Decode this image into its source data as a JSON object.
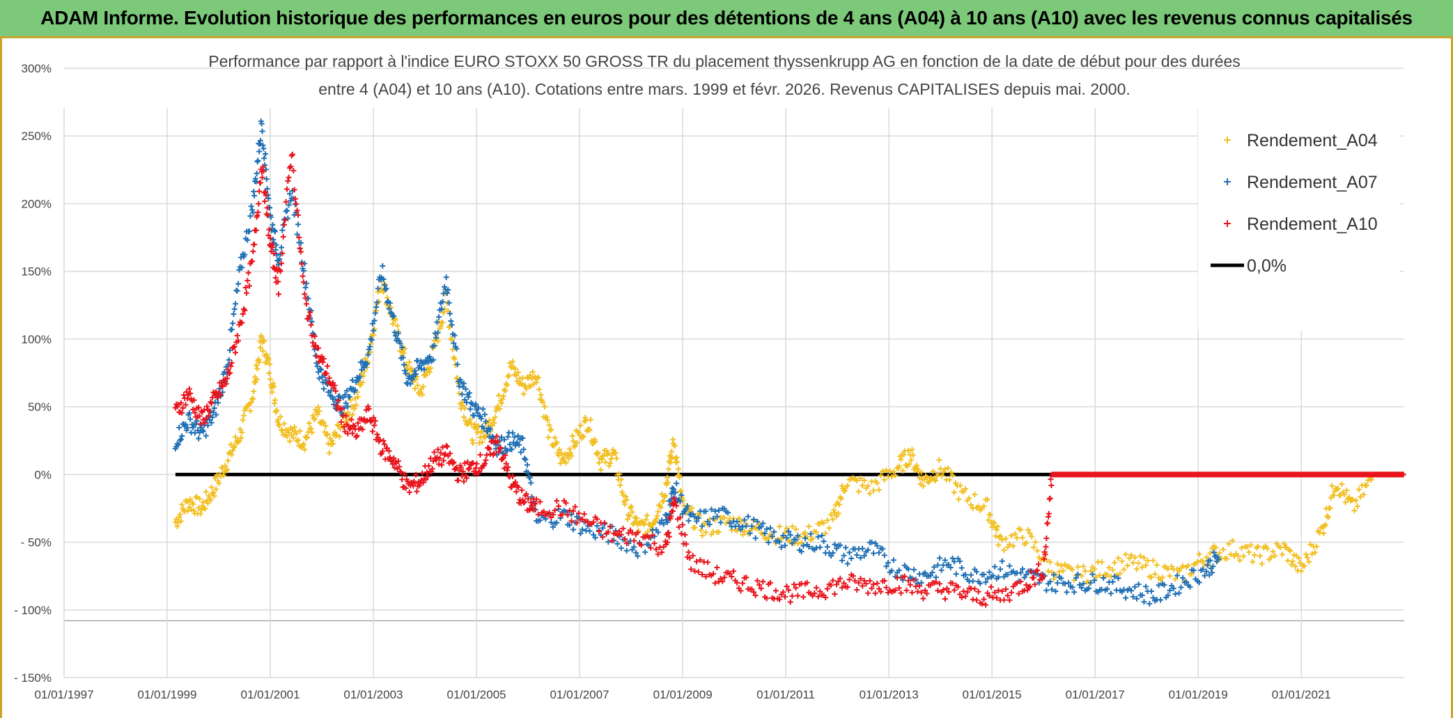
{
  "banner": {
    "title": "ADAM Informe. Evolution historique des performances en euros pour des détentions de 4 ans (A04) à 10 ans (A10) avec les revenus connus capitalisés"
  },
  "colors": {
    "banner_bg": "#7dc97a",
    "a04": "#f2bf22",
    "a07": "#1f6fb4",
    "a10": "#e8141c",
    "zero": "#000000"
  },
  "chart_data": {
    "type": "scatter",
    "title_line1": "Performance par rapport à l'indice EURO STOXX 50 GROSS TR  du placement thyssenkrupp AG en fonction de la date de début pour des durées",
    "title_line2": "entre 4 (A04) et 10 ans (A10). Cotations entre mars. 1999 et févr. 2026. Revenus CAPITALISES depuis mai. 2000.",
    "xlabel": "",
    "ylabel": "",
    "x_range": [
      "1997-01-01",
      "2022-12-31"
    ],
    "y_range": [
      -150,
      300
    ],
    "x_ticks": [
      "01/01/1997",
      "01/01/1999",
      "01/01/2001",
      "01/01/2003",
      "01/01/2005",
      "01/01/2007",
      "01/01/2009",
      "01/01/2011",
      "01/01/2013",
      "01/01/2015",
      "01/01/2017",
      "01/01/2019",
      "01/01/2021"
    ],
    "y_ticks": [
      "300%",
      "250%",
      "200%",
      "150%",
      "100%",
      "50%",
      "0%",
      "- 50%",
      "- 100%",
      "- 150%"
    ],
    "grid": true,
    "legend_position": "top-right",
    "series": [
      {
        "name": "Rendement_A04",
        "marker": "+",
        "points": [
          [
            "1999-03-01",
            -35
          ],
          [
            "1999-06-01",
            -20
          ],
          [
            "1999-09-01",
            -25
          ],
          [
            "1999-12-01",
            -10
          ],
          [
            "2000-03-01",
            10
          ],
          [
            "2000-06-01",
            30
          ],
          [
            "2000-09-01",
            60
          ],
          [
            "2000-11-01",
            100
          ],
          [
            "2001-01-01",
            75
          ],
          [
            "2001-03-01",
            40
          ],
          [
            "2001-06-01",
            30
          ],
          [
            "2001-09-01",
            25
          ],
          [
            "2001-12-01",
            45
          ],
          [
            "2002-03-01",
            20
          ],
          [
            "2002-06-01",
            40
          ],
          [
            "2002-09-01",
            55
          ],
          [
            "2002-12-01",
            90
          ],
          [
            "2003-03-01",
            145
          ],
          [
            "2003-06-01",
            110
          ],
          [
            "2003-09-01",
            80
          ],
          [
            "2003-12-01",
            60
          ],
          [
            "2004-03-01",
            90
          ],
          [
            "2004-06-01",
            130
          ],
          [
            "2004-09-01",
            60
          ],
          [
            "2004-12-01",
            30
          ],
          [
            "2005-03-01",
            30
          ],
          [
            "2005-06-01",
            50
          ],
          [
            "2005-09-01",
            80
          ],
          [
            "2005-12-01",
            65
          ],
          [
            "2006-03-01",
            75
          ],
          [
            "2006-06-01",
            30
          ],
          [
            "2006-09-01",
            10
          ],
          [
            "2006-12-01",
            25
          ],
          [
            "2007-03-01",
            40
          ],
          [
            "2007-06-01",
            10
          ],
          [
            "2007-09-01",
            15
          ],
          [
            "2007-12-01",
            -25
          ],
          [
            "2008-03-01",
            -40
          ],
          [
            "2008-06-01",
            -35
          ],
          [
            "2008-09-01",
            -10
          ],
          [
            "2008-11-01",
            25
          ],
          [
            "2009-01-01",
            -25
          ],
          [
            "2009-06-01",
            -40
          ],
          [
            "2009-12-01",
            -35
          ],
          [
            "2010-06-01",
            -40
          ],
          [
            "2010-12-01",
            -45
          ],
          [
            "2011-06-01",
            -45
          ],
          [
            "2011-12-01",
            -35
          ],
          [
            "2012-03-01",
            -5
          ],
          [
            "2012-09-01",
            -10
          ],
          [
            "2013-03-01",
            5
          ],
          [
            "2013-06-01",
            15
          ],
          [
            "2013-09-01",
            -5
          ],
          [
            "2014-01-01",
            5
          ],
          [
            "2014-06-01",
            -15
          ],
          [
            "2014-12-01",
            -25
          ],
          [
            "2015-03-01",
            -50
          ],
          [
            "2015-09-01",
            -45
          ],
          [
            "2016-03-01",
            -70
          ],
          [
            "2016-09-01",
            -75
          ],
          [
            "2017-03-01",
            -70
          ],
          [
            "2017-09-01",
            -65
          ],
          [
            "2018-03-01",
            -70
          ],
          [
            "2018-09-01",
            -75
          ],
          [
            "2019-03-01",
            -60
          ],
          [
            "2019-09-01",
            -55
          ],
          [
            "2020-03-01",
            -60
          ],
          [
            "2020-09-01",
            -55
          ],
          [
            "2021-01-01",
            -70
          ],
          [
            "2021-06-01",
            -40
          ],
          [
            "2021-09-01",
            -5
          ],
          [
            "2022-01-01",
            -25
          ],
          [
            "2022-06-01",
            0
          ],
          [
            "2022-12-31",
            0
          ]
        ]
      },
      {
        "name": "Rendement_A07",
        "marker": "+",
        "points": [
          [
            "1999-03-01",
            25
          ],
          [
            "1999-06-01",
            40
          ],
          [
            "1999-09-01",
            30
          ],
          [
            "1999-12-01",
            45
          ],
          [
            "2000-03-01",
            80
          ],
          [
            "2000-06-01",
            150
          ],
          [
            "2000-09-01",
            200
          ],
          [
            "2000-11-01",
            260
          ],
          [
            "2001-01-01",
            190
          ],
          [
            "2001-03-01",
            160
          ],
          [
            "2001-06-01",
            210
          ],
          [
            "2001-09-01",
            150
          ],
          [
            "2001-12-01",
            80
          ],
          [
            "2002-03-01",
            60
          ],
          [
            "2002-06-01",
            50
          ],
          [
            "2002-09-01",
            70
          ],
          [
            "2002-12-01",
            90
          ],
          [
            "2003-03-01",
            150
          ],
          [
            "2003-06-01",
            110
          ],
          [
            "2003-09-01",
            70
          ],
          [
            "2003-12-01",
            80
          ],
          [
            "2004-03-01",
            90
          ],
          [
            "2004-06-01",
            145
          ],
          [
            "2004-09-01",
            70
          ],
          [
            "2004-12-01",
            50
          ],
          [
            "2005-03-01",
            40
          ],
          [
            "2005-06-01",
            20
          ],
          [
            "2005-09-01",
            25
          ],
          [
            "2005-12-01",
            20
          ],
          [
            "2006-03-01",
            -35
          ],
          [
            "2006-09-01",
            -30
          ],
          [
            "2007-03-01",
            -40
          ],
          [
            "2007-09-01",
            -45
          ],
          [
            "2008-03-01",
            -55
          ],
          [
            "2008-09-01",
            -35
          ],
          [
            "2008-11-01",
            -10
          ],
          [
            "2009-03-01",
            -35
          ],
          [
            "2009-09-01",
            -30
          ],
          [
            "2010-03-01",
            -35
          ],
          [
            "2010-09-01",
            -45
          ],
          [
            "2011-03-01",
            -50
          ],
          [
            "2011-09-01",
            -50
          ],
          [
            "2012-03-01",
            -60
          ],
          [
            "2012-09-01",
            -55
          ],
          [
            "2013-03-01",
            -70
          ],
          [
            "2013-09-01",
            -75
          ],
          [
            "2014-03-01",
            -65
          ],
          [
            "2014-09-01",
            -75
          ],
          [
            "2015-03-01",
            -70
          ],
          [
            "2015-09-01",
            -75
          ],
          [
            "2016-03-01",
            -80
          ],
          [
            "2016-09-01",
            -80
          ],
          [
            "2017-03-01",
            -80
          ],
          [
            "2017-09-01",
            -85
          ],
          [
            "2018-03-01",
            -90
          ],
          [
            "2018-09-01",
            -80
          ],
          [
            "2019-03-01",
            -70
          ],
          [
            "2019-06-01",
            -60
          ]
        ]
      },
      {
        "name": "Rendement_A10",
        "marker": "+",
        "points": [
          [
            "1999-03-01",
            45
          ],
          [
            "1999-06-01",
            60
          ],
          [
            "1999-09-01",
            40
          ],
          [
            "1999-12-01",
            55
          ],
          [
            "2000-03-01",
            70
          ],
          [
            "2000-06-01",
            110
          ],
          [
            "2000-09-01",
            160
          ],
          [
            "2000-11-01",
            230
          ],
          [
            "2001-01-01",
            170
          ],
          [
            "2001-03-01",
            140
          ],
          [
            "2001-06-01",
            240
          ],
          [
            "2001-09-01",
            130
          ],
          [
            "2001-12-01",
            90
          ],
          [
            "2002-03-01",
            70
          ],
          [
            "2002-06-01",
            40
          ],
          [
            "2002-09-01",
            30
          ],
          [
            "2002-12-01",
            45
          ],
          [
            "2003-03-01",
            20
          ],
          [
            "2003-06-01",
            10
          ],
          [
            "2003-09-01",
            -10
          ],
          [
            "2003-12-01",
            -5
          ],
          [
            "2004-03-01",
            10
          ],
          [
            "2004-06-01",
            15
          ],
          [
            "2004-09-01",
            0
          ],
          [
            "2004-12-01",
            5
          ],
          [
            "2005-03-01",
            10
          ],
          [
            "2005-06-01",
            25
          ],
          [
            "2005-09-01",
            -5
          ],
          [
            "2005-12-01",
            -20
          ],
          [
            "2006-03-01",
            -25
          ],
          [
            "2006-09-01",
            -25
          ],
          [
            "2007-03-01",
            -35
          ],
          [
            "2007-09-01",
            -45
          ],
          [
            "2008-03-01",
            -45
          ],
          [
            "2008-09-01",
            -55
          ],
          [
            "2008-11-01",
            -20
          ],
          [
            "2009-03-01",
            -65
          ],
          [
            "2009-09-01",
            -75
          ],
          [
            "2010-03-01",
            -80
          ],
          [
            "2010-09-01",
            -85
          ],
          [
            "2011-03-01",
            -88
          ],
          [
            "2011-09-01",
            -85
          ],
          [
            "2012-03-01",
            -80
          ],
          [
            "2012-09-01",
            -82
          ],
          [
            "2013-03-01",
            -80
          ],
          [
            "2013-09-01",
            -85
          ],
          [
            "2014-03-01",
            -85
          ],
          [
            "2014-09-01",
            -90
          ],
          [
            "2015-03-01",
            -90
          ],
          [
            "2015-09-01",
            -80
          ],
          [
            "2016-01-01",
            -70
          ],
          [
            "2016-03-01",
            0
          ],
          [
            "2022-12-31",
            0
          ]
        ]
      }
    ],
    "reference_line": {
      "name": "0,0%",
      "value": 0,
      "x_from": "1999-03-01",
      "x_to": "2022-12-31"
    }
  }
}
